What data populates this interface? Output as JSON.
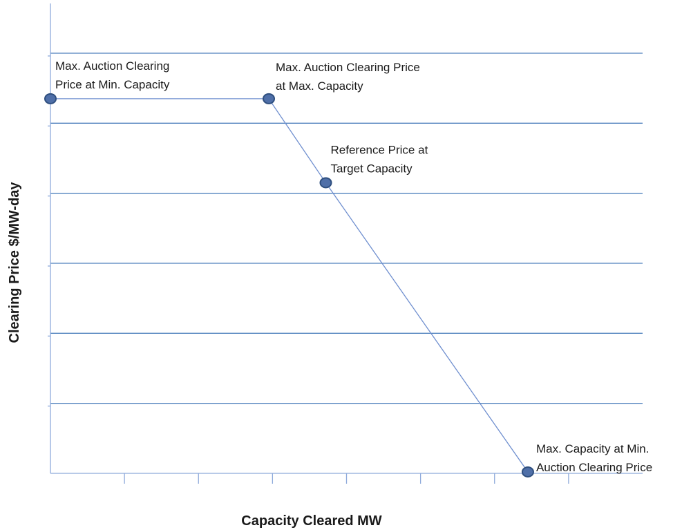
{
  "chart_data": {
    "type": "line",
    "title": "",
    "xlabel": "Capacity Cleared MW",
    "ylabel": "Clearing Price $/MW-day",
    "xlim": [
      0,
      8
    ],
    "ylim": [
      0,
      6
    ],
    "x_tick_count": 8,
    "y_grid_lines": 6,
    "grid": true,
    "legend": "none",
    "colors": {
      "grid": "#4f81bd",
      "line": "#6f8fcf",
      "point": "#4f6fa8"
    },
    "series": [
      {
        "points": [
          {
            "x": 0.0,
            "y": 5.35,
            "label": [
              "Max. Auction Clearing",
              "Price at Min. Capacity"
            ]
          },
          {
            "x": 2.95,
            "y": 5.35,
            "label": [
              "Max. Auction Clearing  Price",
              "at Max. Capacity"
            ]
          },
          {
            "x": 3.72,
            "y": 4.15,
            "label": [
              "Reference  Price at",
              "Target Capacity"
            ]
          },
          {
            "x": 6.45,
            "y": 0.02,
            "label": [
              "Max. Capacity at Min.",
              "Auction Clearing Price"
            ]
          }
        ]
      }
    ]
  }
}
